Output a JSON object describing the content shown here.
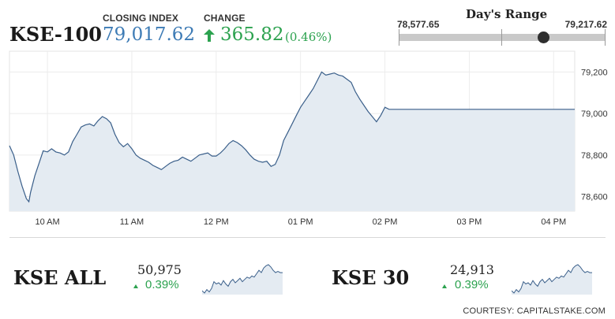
{
  "header": {
    "index_name": "KSE-100",
    "closing_label": "CLOSING INDEX",
    "closing_value": "79,017.62",
    "change_label": "CHANGE",
    "change_value": "365.82",
    "change_pct": "(0.46%)",
    "up_color": "#2ca24f",
    "value_color": "#3d7bb5"
  },
  "days_range": {
    "title": "Day's Range",
    "low": "78,577.65",
    "high": "79,217.62",
    "position": 0.7
  },
  "chart_data": {
    "type": "area",
    "x_ticks": [
      "10 AM",
      "11 AM",
      "12 PM",
      "01 PM",
      "02 PM",
      "03 PM",
      "04 PM"
    ],
    "y_ticks": [
      "79,200",
      "79,000",
      "78,800",
      "78,600"
    ],
    "ylim": [
      78530,
      79300
    ],
    "xlim": [
      9.55,
      16.25
    ],
    "grid": true,
    "line_color": "#3a5f8a",
    "fill_color": "#e4ebf2",
    "series": [
      {
        "x": [
          9.55,
          9.6,
          9.65,
          9.7,
          9.75,
          9.78,
          9.8,
          9.85,
          9.9,
          9.95,
          10.0,
          10.05,
          10.1,
          10.15,
          10.2,
          10.25,
          10.3,
          10.35,
          10.4,
          10.45,
          10.5,
          10.55,
          10.6,
          10.65,
          10.7,
          10.75,
          10.8,
          10.85,
          10.9,
          10.95,
          11.0,
          11.05,
          11.1,
          11.15,
          11.2,
          11.25,
          11.3,
          11.35,
          11.4,
          11.45,
          11.5,
          11.55,
          11.6,
          11.65,
          11.7,
          11.75,
          11.8,
          11.85,
          11.9,
          11.95,
          12.0,
          12.05,
          12.1,
          12.15,
          12.2,
          12.25,
          12.3,
          12.35,
          12.4,
          12.45,
          12.5,
          12.55,
          12.6,
          12.65,
          12.7,
          12.75,
          12.8,
          12.85,
          12.9,
          12.95,
          13.0,
          13.05,
          13.1,
          13.15,
          13.2,
          13.25,
          13.3,
          13.35,
          13.4,
          13.45,
          13.5,
          13.55,
          13.6,
          13.65,
          13.7,
          13.75,
          13.8,
          13.85,
          13.9,
          13.95,
          14.0,
          14.05,
          14.1,
          14.15,
          14.2,
          14.25,
          14.3,
          14.35,
          14.4,
          14.45,
          14.5,
          14.55,
          14.6,
          14.65,
          14.7,
          14.75,
          14.8,
          14.85,
          14.9,
          14.95,
          15.0,
          15.05,
          15.1,
          15.15,
          15.2,
          15.25,
          15.3,
          15.35,
          15.4,
          15.45,
          15.5,
          15.75,
          16.0,
          16.25
        ],
        "y": [
          78845,
          78800,
          78720,
          78650,
          78590,
          78575,
          78620,
          78700,
          78760,
          78820,
          78815,
          78830,
          78815,
          78810,
          78800,
          78815,
          78865,
          78900,
          78935,
          78945,
          78950,
          78940,
          78965,
          78985,
          78975,
          78955,
          78900,
          78860,
          78840,
          78855,
          78830,
          78800,
          78785,
          78775,
          78765,
          78750,
          78740,
          78730,
          78745,
          78760,
          78770,
          78775,
          78790,
          78780,
          78770,
          78785,
          78800,
          78805,
          78810,
          78795,
          78795,
          78810,
          78830,
          78855,
          78870,
          78860,
          78845,
          78825,
          78800,
          78780,
          78770,
          78765,
          78770,
          78745,
          78755,
          78800,
          78870,
          78910,
          78950,
          78990,
          79030,
          79060,
          79090,
          79120,
          79160,
          79200,
          79185,
          79190,
          79195,
          79185,
          79180,
          79165,
          79150,
          79105,
          79070,
          79040,
          79010,
          78985,
          78960,
          78990,
          79030,
          79020,
          79020,
          79020,
          79020,
          79020,
          79020,
          79020,
          79020,
          79020,
          79020,
          79020,
          79020,
          79020,
          79020,
          79020,
          79020,
          79020,
          79020,
          79020,
          79020,
          79020,
          79020,
          79020,
          79020,
          79020,
          79020,
          79020,
          79020,
          79020,
          79020,
          79020,
          79020,
          79020
        ]
      }
    ]
  },
  "mini_indices": [
    {
      "name": "KSE ALL",
      "value": "50,975",
      "change_pct": "0.39%",
      "spark": [
        4,
        2,
        5,
        3,
        6,
        12,
        10,
        11,
        9,
        13,
        10,
        8,
        12,
        14,
        11,
        13,
        15,
        12,
        14,
        16,
        15,
        17,
        16,
        19,
        22,
        20,
        24,
        26,
        27,
        25,
        22,
        20,
        21,
        20,
        20
      ]
    },
    {
      "name": "KSE 30",
      "value": "24,913",
      "change_pct": "0.39%",
      "spark": [
        3,
        1,
        4,
        2,
        5,
        11,
        9,
        10,
        8,
        12,
        9,
        7,
        11,
        13,
        10,
        12,
        14,
        11,
        13,
        15,
        14,
        16,
        15,
        18,
        21,
        19,
        23,
        25,
        26,
        24,
        21,
        19,
        20,
        19,
        19
      ]
    }
  ],
  "footer": {
    "source": "COURTESY: CAPITALSTAKE.COM"
  }
}
